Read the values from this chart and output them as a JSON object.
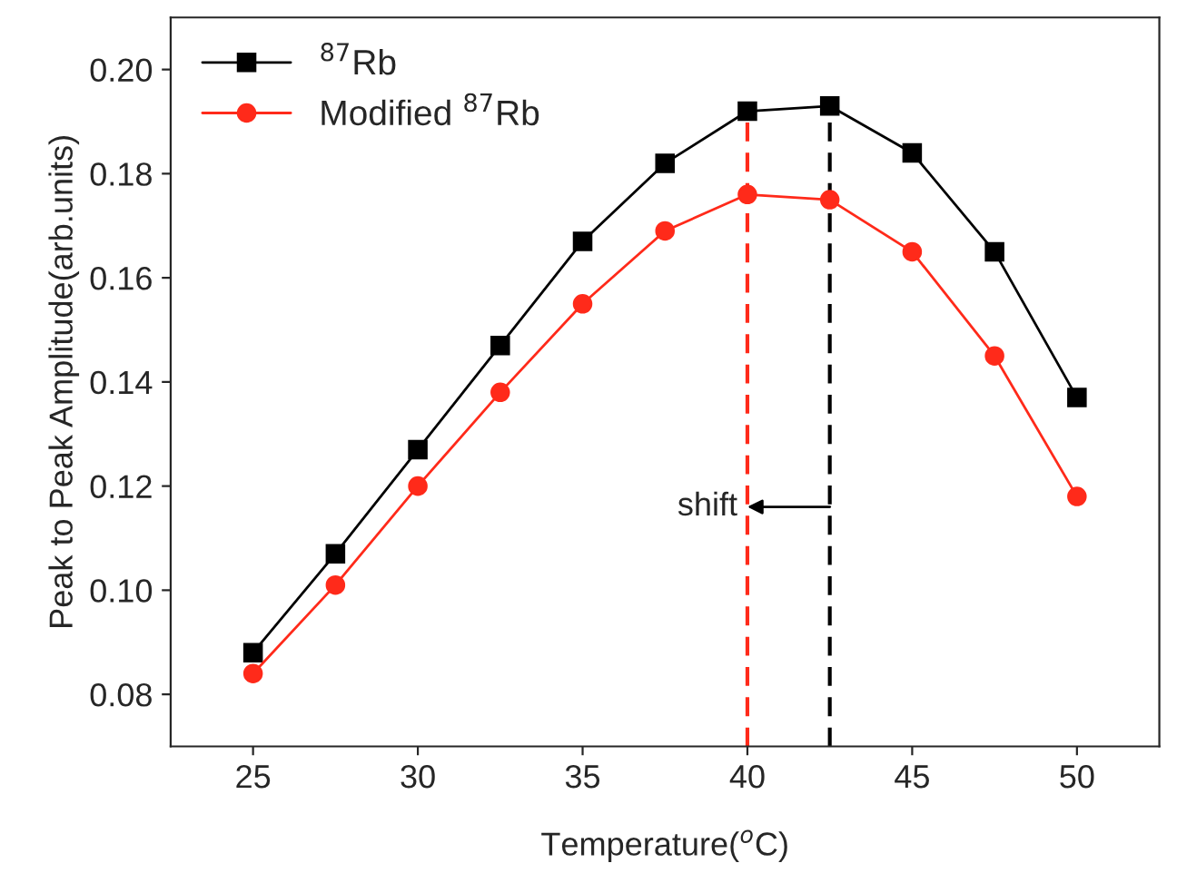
{
  "chart_data": {
    "type": "line",
    "xlabel": "Temperature($^{o}$C)",
    "ylabel": "Peak to Peak Amplitude(arb.units)",
    "x": [
      25,
      27.5,
      30,
      32.5,
      35,
      37.5,
      40,
      42.5,
      45,
      47.5,
      50
    ],
    "series": [
      {
        "name": "$^{87}$Rb",
        "color": "#000000",
        "marker": "square",
        "values": [
          0.088,
          0.107,
          0.127,
          0.147,
          0.167,
          0.182,
          0.192,
          0.193,
          0.184,
          0.165,
          0.137
        ]
      },
      {
        "name": "Modified $^{87}$Rb",
        "color": "#ff2a1a",
        "marker": "circle",
        "values": [
          0.084,
          0.101,
          0.12,
          0.138,
          0.155,
          0.169,
          0.176,
          0.175,
          0.165,
          0.145,
          0.118
        ]
      }
    ],
    "xlim": [
      22.5,
      52.5
    ],
    "xticks": [
      25,
      30,
      35,
      40,
      45,
      50
    ],
    "ylim": [
      0.07,
      0.21
    ],
    "yticks": [
      {
        "value": 0.08,
        "label": "0.08"
      },
      {
        "value": 0.1,
        "label": "0.10"
      },
      {
        "value": 0.12,
        "label": "0.12"
      },
      {
        "value": 0.14,
        "label": "0.14"
      },
      {
        "value": 0.16,
        "label": "0.16"
      },
      {
        "value": 0.18,
        "label": "0.18"
      },
      {
        "value": 0.2,
        "label": "0.20"
      }
    ],
    "ref_lines": [
      {
        "axis": "x",
        "value": 40,
        "color": "#ff2a1a",
        "line_style": "dashed"
      },
      {
        "axis": "x",
        "value": 42.5,
        "color": "#000000",
        "line_style": "dashed"
      }
    ],
    "annotations": [
      {
        "text": "shift",
        "x": 40,
        "y": 0.116
      }
    ],
    "grid": false,
    "legend": "top left",
    "line_style": "solid"
  }
}
